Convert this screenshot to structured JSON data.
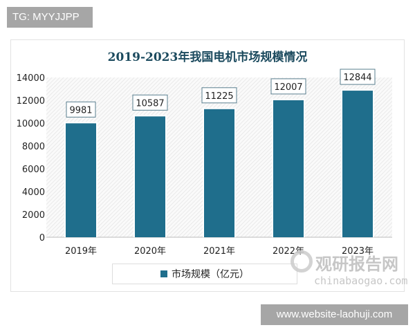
{
  "badge_top": "TG: MYYJJPP",
  "badge_bottom": "www.website-laohuji.com",
  "watermark": {
    "name": "观研报告网",
    "url": "chinabaogao.com"
  },
  "chart_data": {
    "type": "bar",
    "title": "2019-2023年我国电机市场规模情况",
    "categories": [
      "2019年",
      "2020年",
      "2021年",
      "2022年",
      "2023年"
    ],
    "series": [
      {
        "name": "市场规模（亿元）",
        "values": [
          9981,
          10587,
          11225,
          12007,
          12844
        ]
      }
    ],
    "data_labels": [
      "9981",
      "10587",
      "11225",
      "12007",
      "12844"
    ],
    "ylim": [
      0,
      14000
    ],
    "yticks": [
      "0",
      "2000",
      "4000",
      "6000",
      "8000",
      "10000",
      "12000",
      "14000"
    ],
    "legend": "bottom",
    "grid": false,
    "bar_color": "#1f6e8c",
    "background": "hatched"
  }
}
